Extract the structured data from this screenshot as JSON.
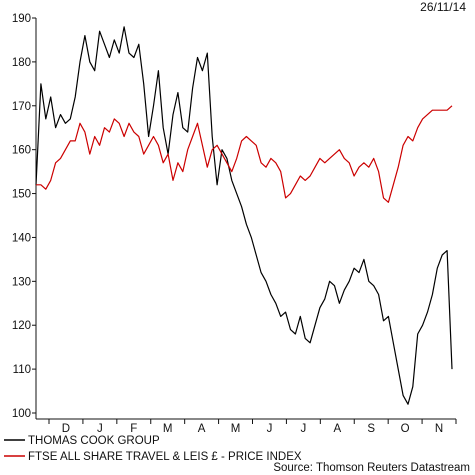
{
  "chart_data": {
    "type": "line",
    "date_label": "26/11/14",
    "source": "Source: Thomson Reuters Datastream",
    "ylim": [
      100,
      190
    ],
    "y_ticks": [
      100,
      110,
      120,
      130,
      140,
      150,
      160,
      170,
      180,
      190
    ],
    "x_ticks": [
      "D",
      "J",
      "F",
      "M",
      "A",
      "M",
      "J",
      "J",
      "A",
      "S",
      "O",
      "N"
    ],
    "grid": false,
    "legend_position": "bottom-left",
    "series": [
      {
        "name": "THOMAS COOK GROUP",
        "color": "#000000",
        "values": [
          152,
          175,
          167,
          172,
          165,
          168,
          166,
          167,
          172,
          180,
          186,
          180,
          178,
          187,
          184,
          181,
          185,
          182,
          188,
          182,
          181,
          184,
          175,
          163,
          170,
          178,
          165,
          159,
          168,
          173,
          165,
          164,
          174,
          181,
          178,
          182,
          163,
          152,
          160,
          158,
          153,
          150,
          147,
          143,
          140,
          136,
          132,
          130,
          127,
          125,
          122,
          123,
          119,
          118,
          122,
          117,
          116,
          120,
          124,
          126,
          130,
          129,
          125,
          128,
          130,
          133,
          132,
          135,
          130,
          129,
          127,
          121,
          122,
          116,
          110,
          104,
          102,
          106,
          118,
          120,
          123,
          127,
          133,
          136,
          137,
          110
        ]
      },
      {
        "name": "FTSE ALL SHARE TRAVEL & LEIS £ - PRICE INDEX",
        "color": "#cc0000",
        "values": [
          152,
          152,
          151,
          153,
          157,
          158,
          160,
          162,
          162,
          166,
          164,
          159,
          163,
          161,
          165,
          164,
          167,
          166,
          163,
          166,
          164,
          163,
          159,
          161,
          163,
          161,
          157,
          159,
          153,
          157,
          155,
          160,
          163,
          166,
          161,
          156,
          160,
          161,
          159,
          157,
          155,
          158,
          162,
          163,
          162,
          161,
          157,
          156,
          158,
          157,
          155,
          149,
          150,
          152,
          154,
          153,
          154,
          156,
          158,
          157,
          158,
          159,
          160,
          158,
          157,
          154,
          156,
          157,
          156,
          158,
          155,
          149,
          148,
          152,
          156,
          161,
          163,
          162,
          165,
          167,
          168,
          169,
          169,
          169,
          169,
          170
        ]
      }
    ]
  }
}
